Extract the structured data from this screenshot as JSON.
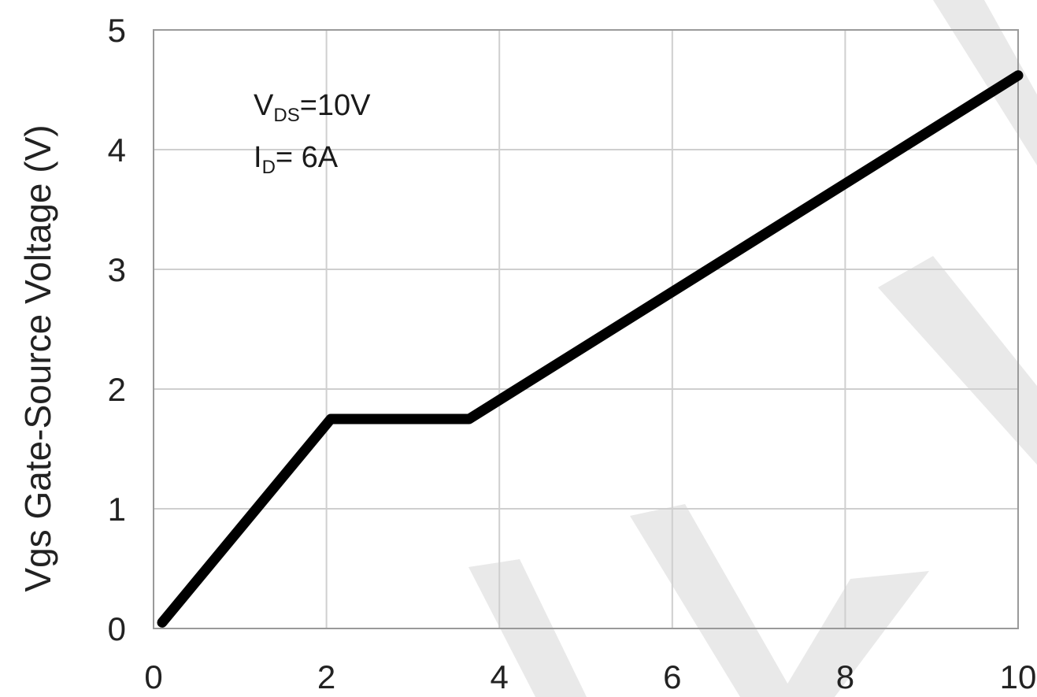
{
  "chart_data": {
    "type": "line",
    "title": "",
    "xlabel": "",
    "ylabel": "Vgs Gate-Source Voltage (V)",
    "xlim": [
      0,
      10
    ],
    "ylim": [
      0,
      5
    ],
    "x_ticks": [
      "0",
      "2",
      "4",
      "6",
      "8",
      "10"
    ],
    "y_ticks": [
      "0",
      "1",
      "2",
      "3",
      "4",
      "5"
    ],
    "grid": true,
    "series": [
      {
        "x": [
          0.1,
          2.05,
          3.65,
          10.0
        ],
        "y": [
          0.05,
          1.75,
          1.75,
          4.62
        ]
      }
    ],
    "annotations": [
      {
        "main": "V",
        "sub": "DS",
        "rest": "=10V"
      },
      {
        "main": "I",
        "sub": "D",
        "rest": "= 6A"
      }
    ]
  },
  "colors": {
    "line": "#000000",
    "grid": "#cfcfcf",
    "frame": "#9a9a9a",
    "watermark": "#e9e9e9"
  }
}
